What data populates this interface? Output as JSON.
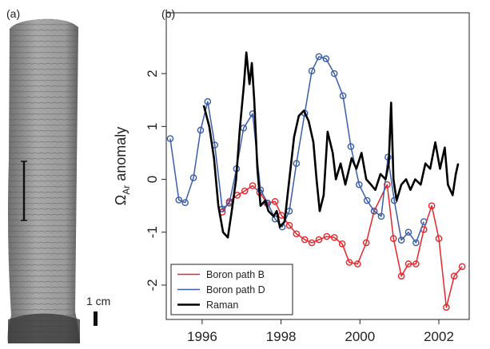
{
  "panel_a": {
    "label": "(a)",
    "scale_label": "1 cm"
  },
  "chart_data": {
    "type": "line",
    "panel_label": "(b)",
    "ylabel": {
      "symbol": "Ω",
      "subscript": "Ar",
      "text": "anomaly"
    },
    "xlim": [
      1995.09,
      2002.77
    ],
    "ylim": [
      -2.65,
      3.15
    ],
    "xticks": [
      1996,
      1998,
      2000,
      2002
    ],
    "yticks": [
      -2,
      -1,
      0,
      1,
      2
    ],
    "legend": "lower left",
    "series": [
      {
        "name": "Boron path B",
        "color": "#e8242a",
        "marker": "circle",
        "x": [
          1996.51,
          1996.69,
          1996.89,
          1997.08,
          1997.28,
          1997.46,
          1997.64,
          1997.85,
          1998.01,
          1998.21,
          1998.39,
          1998.6,
          1998.78,
          1998.96,
          1999.16,
          1999.35,
          1999.55,
          1999.73,
          1999.94,
          2000.16,
          2000.36,
          2000.69,
          2000.85,
          2001.05,
          2001.23,
          2001.42,
          2001.62,
          2001.82,
          2002.0,
          2002.19,
          2002.39,
          2002.59
        ],
        "values": [
          -0.62,
          -0.42,
          -0.3,
          -0.22,
          -0.12,
          -0.25,
          -0.45,
          -0.42,
          -0.68,
          -0.87,
          -1.03,
          -1.14,
          -1.2,
          -1.14,
          -1.08,
          -1.1,
          -1.22,
          -1.57,
          -1.6,
          -1.2,
          -0.6,
          -0.1,
          -1.12,
          -1.83,
          -1.6,
          -1.6,
          -0.95,
          -0.5,
          -1.12,
          -2.42,
          -1.83,
          -1.65
        ]
      },
      {
        "name": "Boron path D",
        "color": "#3a5daa",
        "marker": "circle",
        "x": [
          1995.19,
          1995.41,
          1995.57,
          1995.78,
          1995.96,
          1996.14,
          1996.32,
          1996.51,
          1996.69,
          1996.87,
          1997.05,
          1997.28,
          1997.48,
          1997.66,
          1997.85,
          1998.03,
          1998.21,
          1998.39,
          1998.6,
          1998.78,
          1998.96,
          1999.14,
          1999.35,
          1999.57,
          1999.77,
          1999.98,
          2000.18,
          2000.36,
          2000.54,
          2000.71,
          2000.87,
          2001.05,
          2001.23,
          2001.42,
          2001.62
        ],
        "values": [
          0.77,
          -0.39,
          -0.44,
          0.03,
          0.93,
          1.47,
          0.65,
          -0.56,
          -0.45,
          0.2,
          0.97,
          1.24,
          -0.2,
          -0.45,
          -0.75,
          -0.9,
          -0.6,
          0.3,
          1.25,
          2.05,
          2.32,
          2.28,
          2.0,
          1.58,
          0.62,
          -0.1,
          -0.4,
          -0.6,
          -0.7,
          0.42,
          -0.4,
          -1.15,
          -1.0,
          -1.2,
          -0.8
        ]
      },
      {
        "name": "Raman",
        "color": "#000000",
        "marker": "none",
        "x": [
          1996.04,
          1996.18,
          1996.3,
          1996.41,
          1996.53,
          1996.65,
          1996.75,
          1996.86,
          1996.96,
          1997.06,
          1997.12,
          1997.2,
          1997.26,
          1997.32,
          1997.4,
          1997.48,
          1997.6,
          1997.68,
          1997.81,
          1997.89,
          1997.97,
          1998.09,
          1998.21,
          1998.33,
          1998.45,
          1998.58,
          1998.7,
          1998.82,
          1998.9,
          1998.98,
          1999.08,
          1999.18,
          1999.31,
          1999.39,
          1999.51,
          1999.63,
          1999.79,
          1999.91,
          2000.04,
          2000.16,
          2000.28,
          2000.39,
          2000.52,
          2000.65,
          2000.73,
          2000.79,
          2000.85,
          2000.93,
          2001.05,
          2001.17,
          2001.28,
          2001.4,
          2001.54,
          2001.66,
          2001.78,
          2001.91,
          2002.03,
          2002.15,
          2002.23,
          2002.35,
          2002.43,
          2002.49
        ],
        "values": [
          1.4,
          1.0,
          0.4,
          -0.5,
          -1.0,
          -1.1,
          -0.6,
          0.0,
          1.0,
          1.8,
          2.4,
          1.8,
          2.2,
          1.5,
          0.2,
          -0.5,
          -0.4,
          -0.6,
          -0.7,
          -0.6,
          -0.9,
          -0.8,
          0.0,
          0.8,
          1.2,
          1.3,
          1.1,
          0.7,
          0.0,
          -0.6,
          -0.3,
          0.9,
          0.5,
          0.0,
          0.3,
          -0.1,
          0.4,
          0.2,
          0.5,
          0.0,
          -0.1,
          -0.2,
          0.1,
          0.0,
          0.3,
          1.45,
          0.0,
          -0.4,
          -0.1,
          0.0,
          -0.2,
          0.0,
          -0.1,
          0.3,
          0.2,
          0.7,
          0.2,
          0.6,
          -0.1,
          -0.3,
          0.1,
          0.3
        ]
      }
    ]
  }
}
